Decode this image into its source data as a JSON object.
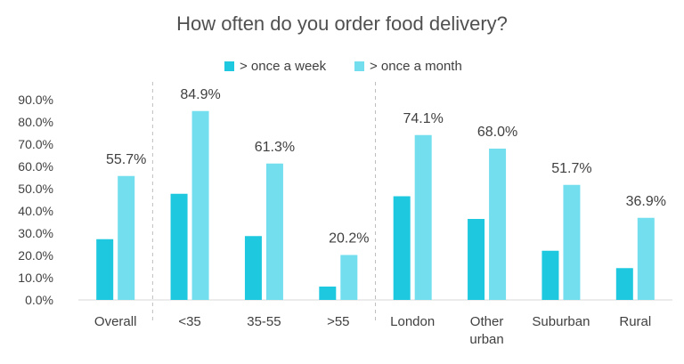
{
  "chart_data": {
    "type": "bar",
    "title": "How often do you order food delivery?",
    "categories": [
      "Overall",
      "<35",
      "35-55",
      ">55",
      "London",
      "Other urban",
      "Suburban",
      "Rural"
    ],
    "category_lines": [
      [
        "Overall"
      ],
      [
        "<35"
      ],
      [
        "35-55"
      ],
      [
        ">55"
      ],
      [
        "London"
      ],
      [
        "Other",
        "urban"
      ],
      [
        "Suburban"
      ],
      [
        "Rural"
      ]
    ],
    "series": [
      {
        "name": "> once a week",
        "color": "#1ec8df",
        "values": [
          27.3,
          47.7,
          28.7,
          6.0,
          46.6,
          36.4,
          22.1,
          14.3
        ]
      },
      {
        "name": "> once a month",
        "color": "#73dfee",
        "values": [
          55.7,
          84.9,
          61.3,
          20.2,
          74.1,
          68.0,
          51.7,
          36.9
        ]
      }
    ],
    "data_labels": [
      "55.7%",
      "84.9%",
      "61.3%",
      "20.2%",
      "74.1%",
      "68.0%",
      "51.7%",
      "36.9%"
    ],
    "y_ticks": [
      "0.0%",
      "10.0%",
      "20.0%",
      "30.0%",
      "40.0%",
      "50.0%",
      "60.0%",
      "70.0%",
      "80.0%",
      "90.0%"
    ],
    "ylim": [
      0,
      90
    ],
    "legend_position": "top-center",
    "grid": false,
    "group_separators": "dashed vertical lines after Overall and after >55"
  }
}
